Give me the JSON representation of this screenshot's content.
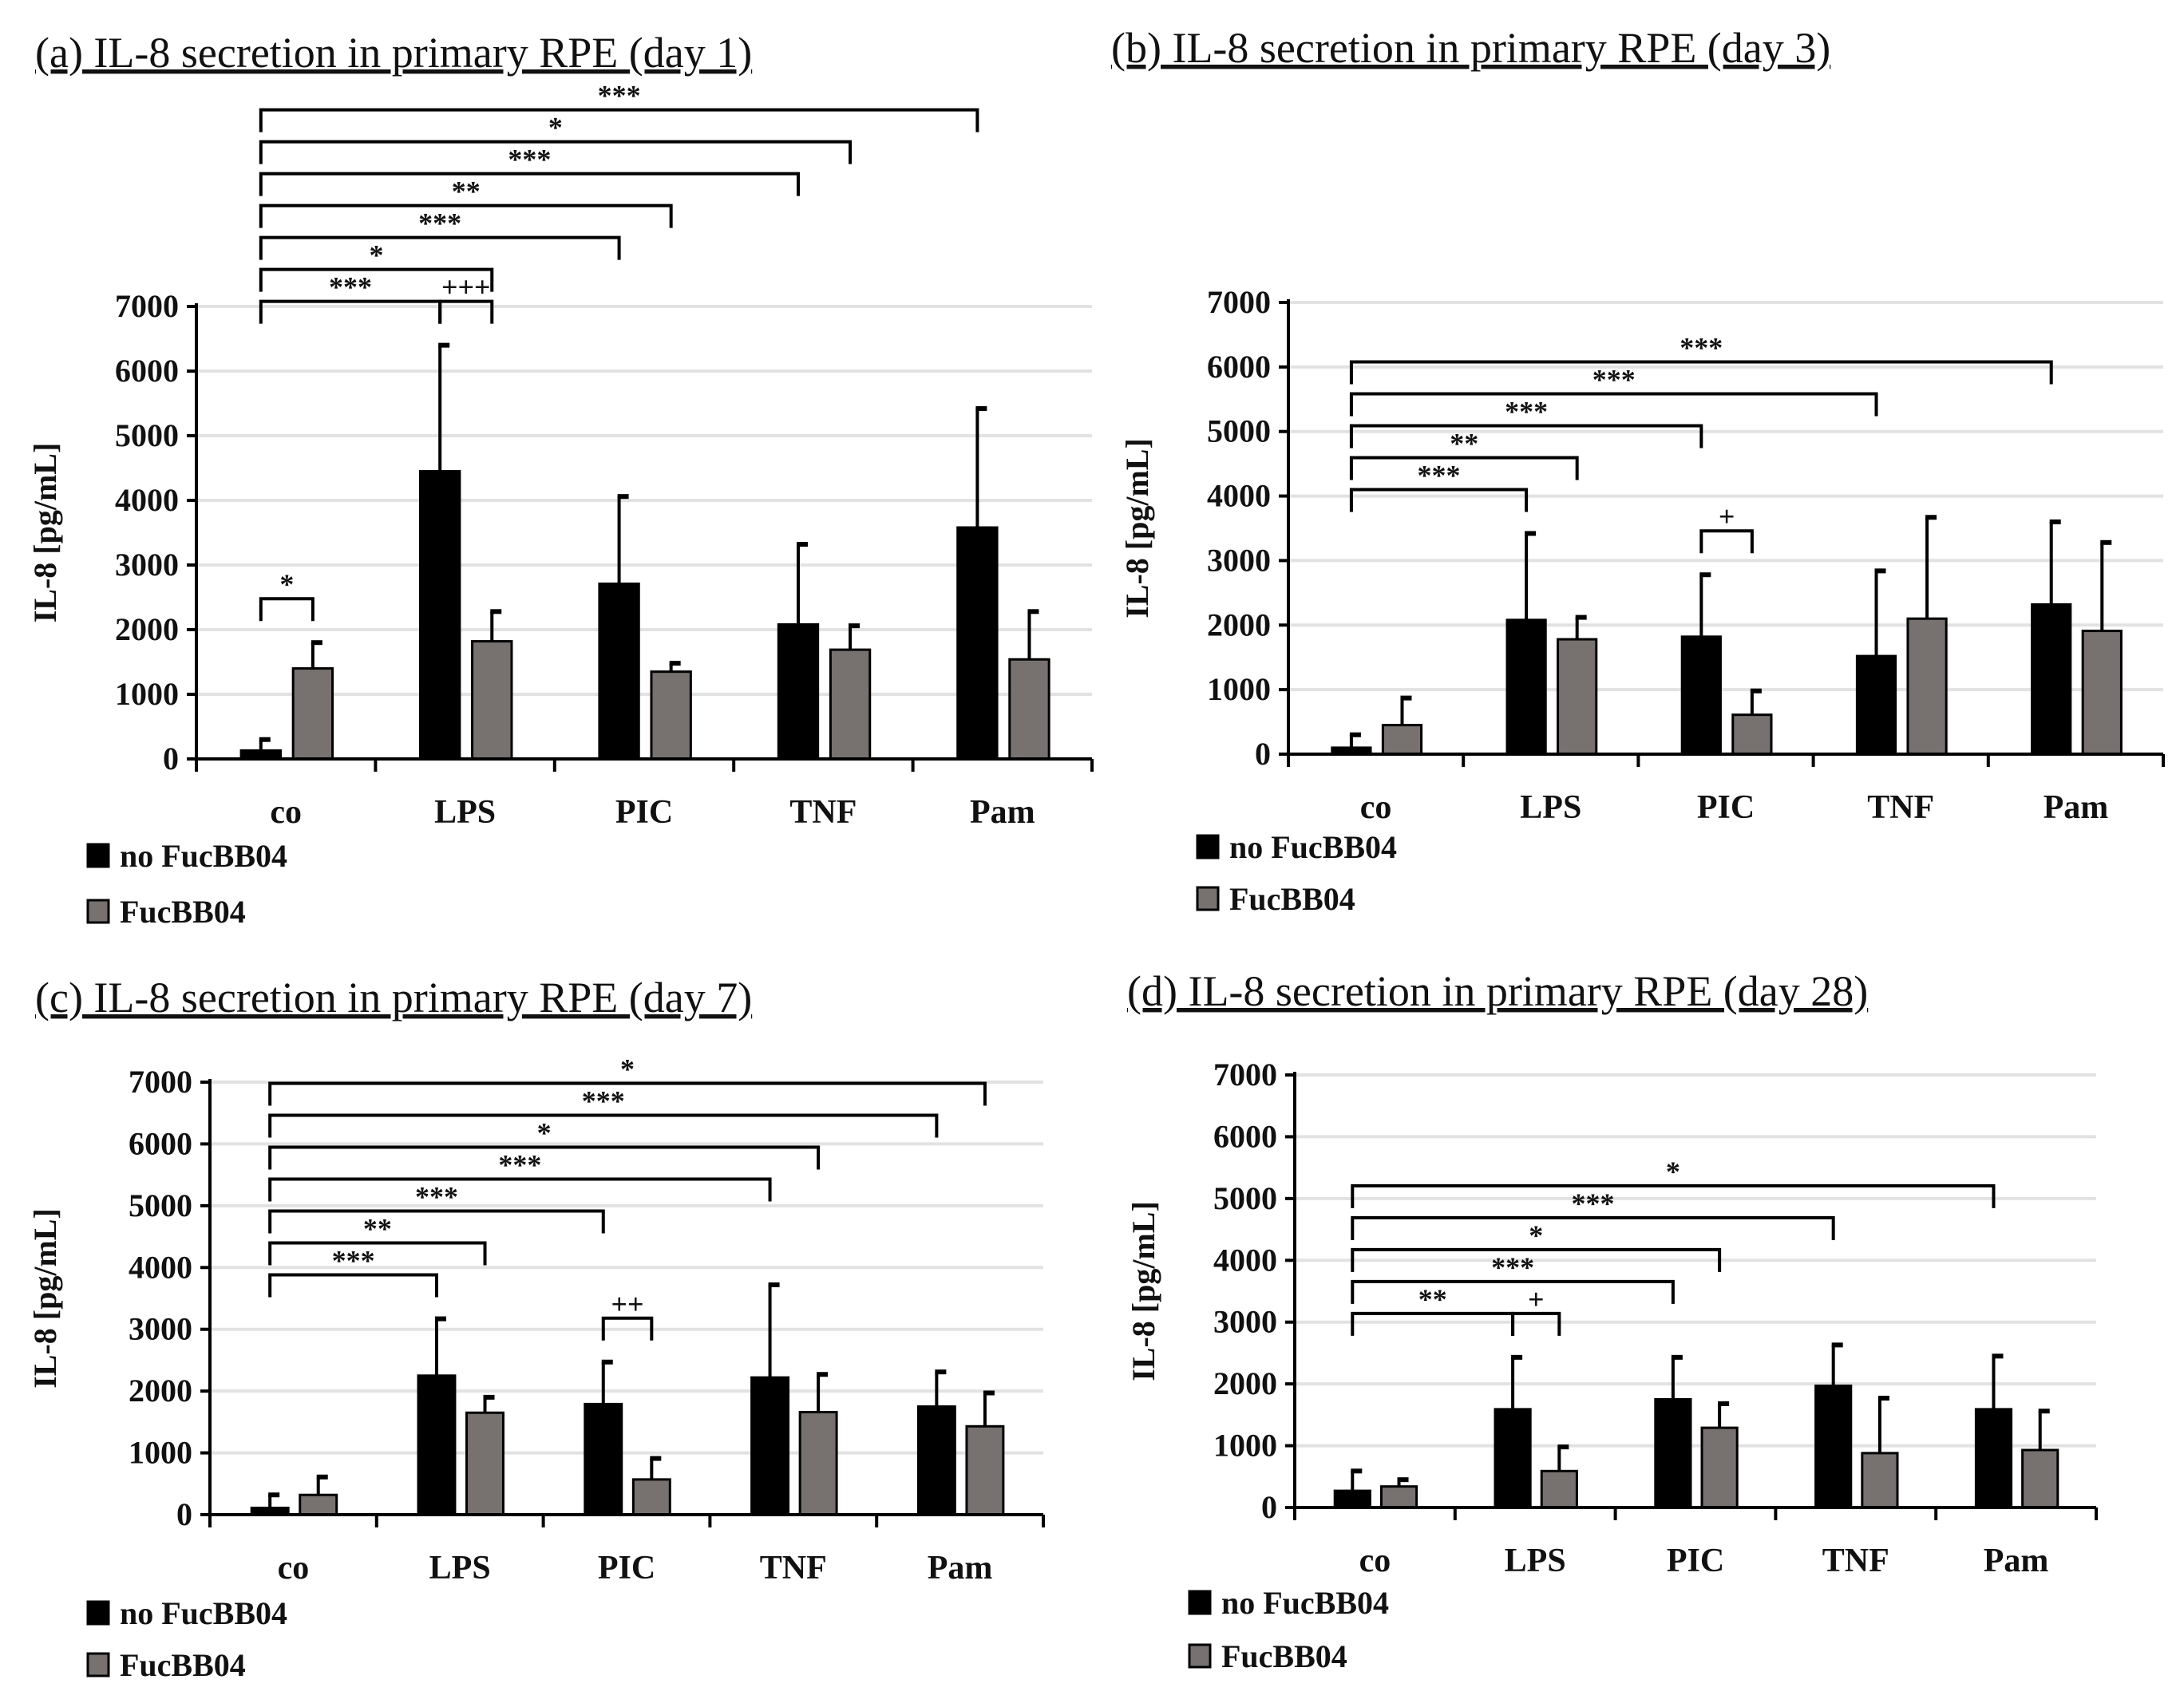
{
  "chart_data": [
    {
      "type": "bar",
      "title": "(a) IL-8 secretion in primary RPE (day 1)",
      "ylabel": "IL-8 [pg/mL]",
      "xlabel": "",
      "ylim": [
        0,
        7000
      ],
      "yticks": [
        0,
        1000,
        2000,
        3000,
        4000,
        5000,
        6000,
        7000
      ],
      "grid": true,
      "legend": "bottom-left",
      "categories": [
        "co",
        "LPS",
        "PIC",
        "TNF",
        "Pam"
      ],
      "series": [
        {
          "name": "no FucBB04",
          "color": "#000000",
          "values": [
            130,
            4450,
            2710,
            2080,
            3580
          ],
          "error_top": [
            300,
            6400,
            4060,
            3320,
            5420
          ]
        },
        {
          "name": "FucBB04",
          "color": "#777270",
          "values": [
            1400,
            1820,
            1350,
            1690,
            1540
          ],
          "error_top": [
            1800,
            2280,
            1480,
            2060,
            2280
          ]
        }
      ],
      "significance": [
        {
          "from": "co/no FucBB04",
          "to": "co/FucBB04",
          "label": "*"
        },
        {
          "from": "LPS/no FucBB04",
          "to": "LPS/FucBB04",
          "label": "+++"
        },
        {
          "from": "co/no FucBB04",
          "to": "LPS/no FucBB04",
          "label": "***"
        },
        {
          "from": "co/no FucBB04",
          "to": "LPS/FucBB04",
          "label": "*"
        },
        {
          "from": "co/no FucBB04",
          "to": "PIC/no FucBB04",
          "label": "***"
        },
        {
          "from": "co/no FucBB04",
          "to": "PIC/FucBB04",
          "label": "**"
        },
        {
          "from": "co/no FucBB04",
          "to": "TNF/no FucBB04",
          "label": "***"
        },
        {
          "from": "co/no FucBB04",
          "to": "TNF/FucBB04",
          "label": "*"
        },
        {
          "from": "co/no FucBB04",
          "to": "Pam/no FucBB04",
          "label": "***"
        }
      ]
    },
    {
      "type": "bar",
      "title": "(b) IL-8 secretion in primary RPE (day 3)",
      "ylabel": "IL-8 [pg/mL]",
      "xlabel": "",
      "ylim": [
        0,
        7000
      ],
      "yticks": [
        0,
        1000,
        2000,
        3000,
        4000,
        5000,
        6000,
        7000
      ],
      "grid": true,
      "legend": "bottom-left",
      "categories": [
        "co",
        "LPS",
        "PIC",
        "TNF",
        "Pam"
      ],
      "series": [
        {
          "name": "no FucBB04",
          "color": "#000000",
          "values": [
            100,
            2080,
            1820,
            1520,
            2320
          ],
          "error_top": [
            300,
            3420,
            2780,
            2840,
            3600
          ]
        },
        {
          "name": "FucBB04",
          "color": "#777270",
          "values": [
            450,
            1780,
            610,
            2100,
            1910
          ],
          "error_top": [
            870,
            2120,
            980,
            3670,
            3280
          ]
        }
      ],
      "significance": [
        {
          "from": "PIC/no FucBB04",
          "to": "PIC/FucBB04",
          "label": "+"
        },
        {
          "from": "co/no FucBB04",
          "to": "LPS/no FucBB04",
          "label": "***"
        },
        {
          "from": "co/no FucBB04",
          "to": "LPS/FucBB04",
          "label": "**"
        },
        {
          "from": "co/no FucBB04",
          "to": "PIC/no FucBB04",
          "label": "***"
        },
        {
          "from": "co/no FucBB04",
          "to": "TNF/no FucBB04",
          "label": "***"
        },
        {
          "from": "co/no FucBB04",
          "to": "Pam/no FucBB04",
          "label": "***"
        }
      ]
    },
    {
      "type": "bar",
      "title": "(c) IL-8 secretion in primary RPE (day 7)",
      "ylabel": "IL-8 [pg/mL]",
      "xlabel": "",
      "ylim": [
        0,
        7000
      ],
      "yticks": [
        0,
        1000,
        2000,
        3000,
        4000,
        5000,
        6000,
        7000
      ],
      "grid": true,
      "legend": "bottom-left",
      "categories": [
        "co",
        "LPS",
        "PIC",
        "TNF",
        "Pam"
      ],
      "series": [
        {
          "name": "no FucBB04",
          "color": "#000000",
          "values": [
            110,
            2250,
            1790,
            2220,
            1750
          ],
          "error_top": [
            320,
            3170,
            2470,
            3720,
            2310
          ]
        },
        {
          "name": "FucBB04",
          "color": "#777270",
          "values": [
            320,
            1650,
            570,
            1660,
            1430
          ],
          "error_top": [
            610,
            1900,
            910,
            2270,
            1970
          ]
        }
      ],
      "significance": [
        {
          "from": "PIC/no FucBB04",
          "to": "PIC/FucBB04",
          "label": "++"
        },
        {
          "from": "co/no FucBB04",
          "to": "LPS/no FucBB04",
          "label": "***"
        },
        {
          "from": "co/no FucBB04",
          "to": "LPS/FucBB04",
          "label": "**"
        },
        {
          "from": "co/no FucBB04",
          "to": "PIC/no FucBB04",
          "label": "***"
        },
        {
          "from": "co/no FucBB04",
          "to": "TNF/no FucBB04",
          "label": "***"
        },
        {
          "from": "co/no FucBB04",
          "to": "TNF/FucBB04",
          "label": "*"
        },
        {
          "from": "co/no FucBB04",
          "to": "Pam/no FucBB04",
          "label": "***"
        },
        {
          "from": "co/no FucBB04",
          "to": "Pam/FucBB04",
          "label": "*"
        }
      ]
    },
    {
      "type": "bar",
      "title": "(d) IL-8 secretion in primary RPE (day 28)",
      "ylabel": "IL-8 [pg/mL]",
      "xlabel": "",
      "ylim": [
        0,
        7000
      ],
      "yticks": [
        0,
        1000,
        2000,
        3000,
        4000,
        5000,
        6000,
        7000
      ],
      "grid": true,
      "legend": "bottom-left",
      "categories": [
        "co",
        "LPS",
        "PIC",
        "TNF",
        "Pam"
      ],
      "series": [
        {
          "name": "no FucBB04",
          "color": "#000000",
          "values": [
            270,
            1590,
            1750,
            1970,
            1590
          ],
          "error_top": [
            590,
            2430,
            2430,
            2630,
            2450
          ]
        },
        {
          "name": "FucBB04",
          "color": "#777270",
          "values": [
            340,
            590,
            1290,
            880,
            930
          ],
          "error_top": [
            450,
            980,
            1680,
            1770,
            1560
          ]
        }
      ],
      "significance": [
        {
          "from": "LPS/no FucBB04",
          "to": "LPS/FucBB04",
          "label": "+"
        },
        {
          "from": "co/no FucBB04",
          "to": "LPS/no FucBB04",
          "label": "**"
        },
        {
          "from": "co/no FucBB04",
          "to": "PIC/no FucBB04",
          "label": "***"
        },
        {
          "from": "co/no FucBB04",
          "to": "PIC/FucBB04",
          "label": "*"
        },
        {
          "from": "co/no FucBB04",
          "to": "TNF/no FucBB04",
          "label": "***"
        },
        {
          "from": "co/no FucBB04",
          "to": "Pam/no FucBB04",
          "label": "*"
        }
      ]
    }
  ]
}
